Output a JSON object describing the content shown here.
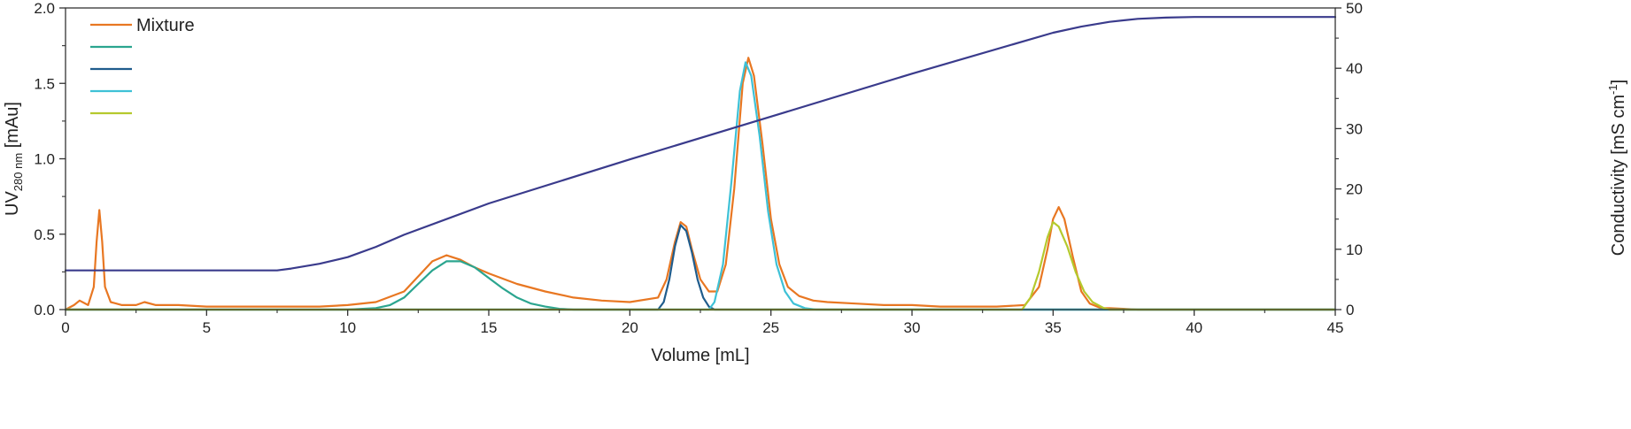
{
  "chart_data": {
    "type": "line",
    "xlabel": "Volume [mL]",
    "ylabel": {
      "main": "UV",
      "sub": "280 nm",
      "unit": " [mAu]"
    },
    "y2label": {
      "main": "Conductivity [mS cm",
      "sup": "-1",
      "end": "]"
    },
    "xlim": [
      0,
      45
    ],
    "ylim": [
      0,
      2.0
    ],
    "y2lim": [
      0,
      50
    ],
    "xticks": [
      "0",
      "5",
      "10",
      "15",
      "20",
      "25",
      "30",
      "35",
      "40",
      "45"
    ],
    "yticks": [
      "0.0",
      "0.5",
      "1.0",
      "1.5",
      "2.0"
    ],
    "y2ticks": [
      "0",
      "10",
      "20",
      "30",
      "40",
      "50"
    ],
    "grid": false,
    "legend_position": "top-left",
    "series": [
      {
        "name": "Mixture",
        "axis": "left",
        "color": "#E87722",
        "x": [
          0,
          0.3,
          0.5,
          0.8,
          1.0,
          1.1,
          1.2,
          1.3,
          1.4,
          1.6,
          2.0,
          2.5,
          2.8,
          3.2,
          4,
          5,
          6,
          7,
          8,
          9,
          10,
          11,
          12,
          12.5,
          13,
          13.5,
          14,
          14.5,
          15,
          16,
          17,
          18,
          19,
          20,
          21,
          21.3,
          21.6,
          21.8,
          22.0,
          22.2,
          22.5,
          22.8,
          23.1,
          23.4,
          23.7,
          24.0,
          24.2,
          24.4,
          24.7,
          25.0,
          25.3,
          25.6,
          26,
          26.5,
          27,
          28,
          29,
          30,
          31,
          32,
          33,
          34,
          34.5,
          34.8,
          35.0,
          35.2,
          35.4,
          35.7,
          36.0,
          36.3,
          36.7,
          37,
          38,
          40,
          42,
          45
        ],
        "y": [
          0.0,
          0.03,
          0.06,
          0.03,
          0.15,
          0.45,
          0.66,
          0.45,
          0.15,
          0.05,
          0.03,
          0.03,
          0.05,
          0.03,
          0.03,
          0.02,
          0.02,
          0.02,
          0.02,
          0.02,
          0.03,
          0.05,
          0.12,
          0.22,
          0.32,
          0.36,
          0.33,
          0.28,
          0.24,
          0.17,
          0.12,
          0.08,
          0.06,
          0.05,
          0.08,
          0.2,
          0.45,
          0.58,
          0.55,
          0.4,
          0.2,
          0.12,
          0.12,
          0.3,
          0.8,
          1.5,
          1.67,
          1.55,
          1.1,
          0.6,
          0.3,
          0.15,
          0.09,
          0.06,
          0.05,
          0.04,
          0.03,
          0.03,
          0.02,
          0.02,
          0.02,
          0.03,
          0.15,
          0.4,
          0.6,
          0.68,
          0.6,
          0.35,
          0.12,
          0.04,
          0.01,
          0.01,
          0.0,
          0.0,
          0.0,
          0.0
        ]
      },
      {
        "name": "",
        "axis": "left",
        "color": "#2BA58F",
        "x": [
          0,
          10,
          11,
          11.5,
          12,
          12.5,
          13,
          13.5,
          14,
          14.5,
          15,
          15.5,
          16,
          16.5,
          17,
          17.5,
          18,
          45
        ],
        "y": [
          0,
          0,
          0.01,
          0.03,
          0.08,
          0.17,
          0.26,
          0.32,
          0.32,
          0.28,
          0.21,
          0.14,
          0.08,
          0.04,
          0.02,
          0.005,
          0,
          0
        ]
      },
      {
        "name": "",
        "axis": "left",
        "color": "#1F5C8C",
        "x": [
          0,
          21.0,
          21.2,
          21.4,
          21.6,
          21.8,
          22.0,
          22.2,
          22.4,
          22.6,
          22.8,
          23.0,
          45
        ],
        "y": [
          0,
          0,
          0.05,
          0.2,
          0.42,
          0.56,
          0.52,
          0.38,
          0.2,
          0.08,
          0.02,
          0,
          0
        ]
      },
      {
        "name": "",
        "axis": "left",
        "color": "#3EC1D6",
        "x": [
          0,
          22.8,
          23.0,
          23.3,
          23.6,
          23.9,
          24.1,
          24.3,
          24.6,
          24.9,
          25.2,
          25.5,
          25.8,
          26.2,
          26.6,
          45
        ],
        "y": [
          0,
          0,
          0.05,
          0.3,
          0.85,
          1.45,
          1.64,
          1.55,
          1.15,
          0.65,
          0.3,
          0.12,
          0.04,
          0.01,
          0,
          0
        ]
      },
      {
        "name": "",
        "axis": "left",
        "color": "#B5C92D",
        "x": [
          0,
          33.9,
          34.2,
          34.5,
          34.8,
          35.0,
          35.2,
          35.5,
          35.8,
          36.1,
          36.4,
          36.8,
          37,
          45
        ],
        "y": [
          0,
          0,
          0.08,
          0.25,
          0.48,
          0.58,
          0.55,
          0.42,
          0.25,
          0.12,
          0.05,
          0.01,
          0,
          0
        ]
      },
      {
        "name": "",
        "axis": "right",
        "color": "#3A3B8C",
        "x": [
          0,
          7.5,
          8,
          9,
          10,
          11,
          12,
          15,
          20,
          25,
          30,
          35,
          36,
          37,
          38,
          39,
          40,
          45
        ],
        "y": [
          6.5,
          6.5,
          6.8,
          7.6,
          8.7,
          10.4,
          12.4,
          17.6,
          24.9,
          32.0,
          39.1,
          45.9,
          46.9,
          47.7,
          48.2,
          48.4,
          48.5,
          48.5
        ]
      }
    ]
  }
}
